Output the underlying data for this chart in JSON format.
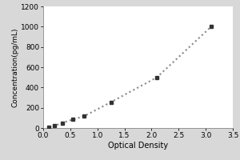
{
  "x_data": [
    0.1,
    0.2,
    0.35,
    0.55,
    0.75,
    1.25,
    2.1,
    3.1
  ],
  "y_data": [
    5,
    20,
    50,
    85,
    115,
    255,
    500,
    1000
  ],
  "xlabel": "Optical Density",
  "ylabel": "Concentration(pg/mL)",
  "xlim": [
    0,
    3.5
  ],
  "ylim": [
    0,
    1200
  ],
  "xticks": [
    0,
    0.5,
    1.0,
    1.5,
    2.0,
    2.5,
    3.0,
    3.5
  ],
  "yticks": [
    0,
    200,
    400,
    600,
    800,
    1000,
    1200
  ],
  "line_color": "#888888",
  "marker_color": "#333333",
  "outer_bg_color": "#d8d8d8",
  "plot_bg_color": "#ffffff",
  "line_style": ":",
  "marker_style": "s",
  "marker_size": 3.5,
  "line_width": 1.5,
  "xlabel_fontsize": 7,
  "ylabel_fontsize": 6.5,
  "tick_fontsize": 6.5,
  "figure_width": 3.0,
  "figure_height": 2.0,
  "dpi": 100
}
